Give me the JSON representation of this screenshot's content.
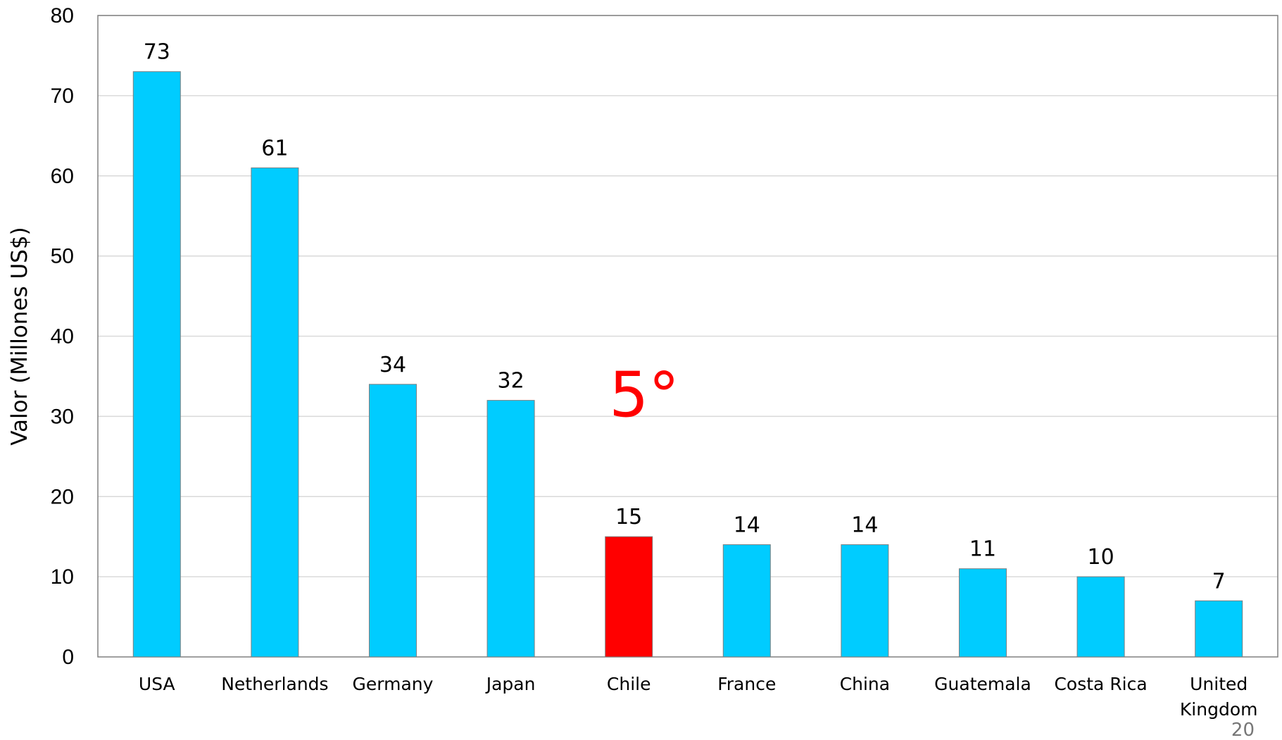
{
  "chart_data": {
    "type": "bar",
    "categories": [
      "USA",
      "Netherlands",
      "Germany",
      "Japan",
      "Chile",
      "France",
      "China",
      "Guatemala",
      "Costa Rica",
      "United Kingdom"
    ],
    "values": [
      73,
      61,
      34,
      32,
      15,
      14,
      14,
      11,
      10,
      7
    ],
    "data_labels": [
      "73",
      "61",
      "34",
      "32",
      "15",
      "14",
      "14",
      "11",
      "10",
      "7"
    ],
    "highlight_category": "Chile",
    "ylabel": "Valor (Millones US$)",
    "ylim": [
      0,
      80
    ],
    "yticks": [
      0,
      10,
      20,
      30,
      40,
      50,
      60,
      70,
      80
    ],
    "grid": "horizontal",
    "colors": {
      "bar": "#00CCFF",
      "highlight": "#FF0000",
      "gridline": "#D9D9D9",
      "border": "#808080"
    },
    "annotation": "5°"
  },
  "page_number": "20"
}
